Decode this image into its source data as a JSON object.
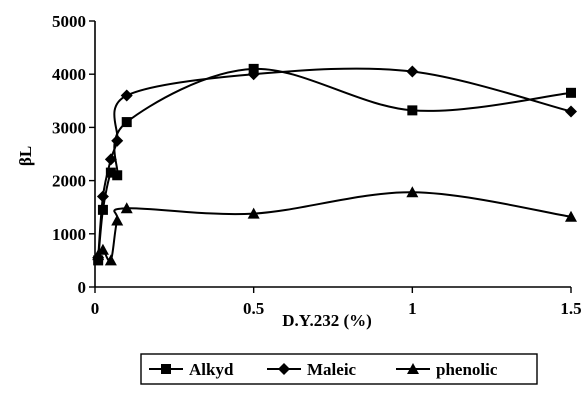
{
  "chart_data": {
    "type": "line",
    "xlabel": "D.Y.232 (%)",
    "ylabel": "βL",
    "xlim": [
      0,
      1.5
    ],
    "ylim": [
      0,
      5000
    ],
    "x_ticks": [
      "0",
      "0.5",
      "1",
      "1.5"
    ],
    "y_ticks": [
      "0",
      "1000",
      "2000",
      "3000",
      "4000",
      "5000"
    ],
    "smooth": true,
    "legend_position": "bottom",
    "series": [
      {
        "name": "Alkyd",
        "marker": "square",
        "color": "#000000",
        "x": [
          0.01,
          0.025,
          0.05,
          0.07,
          0.1,
          0.5,
          1.0,
          1.5
        ],
        "y": [
          500,
          1450,
          2150,
          2100,
          3100,
          4100,
          3320,
          3650
        ]
      },
      {
        "name": "Maleic",
        "marker": "diamond",
        "color": "#000000",
        "x": [
          0.01,
          0.025,
          0.05,
          0.07,
          0.1,
          0.5,
          1.0,
          1.5
        ],
        "y": [
          550,
          1700,
          2400,
          2750,
          3600,
          4000,
          4050,
          3300
        ]
      },
      {
        "name": "phenolic",
        "marker": "triangle",
        "color": "#000000",
        "x": [
          0.01,
          0.025,
          0.05,
          0.07,
          0.1,
          0.5,
          1.0,
          1.5
        ],
        "y": [
          600,
          700,
          500,
          1250,
          1480,
          1380,
          1780,
          1320
        ]
      }
    ]
  }
}
